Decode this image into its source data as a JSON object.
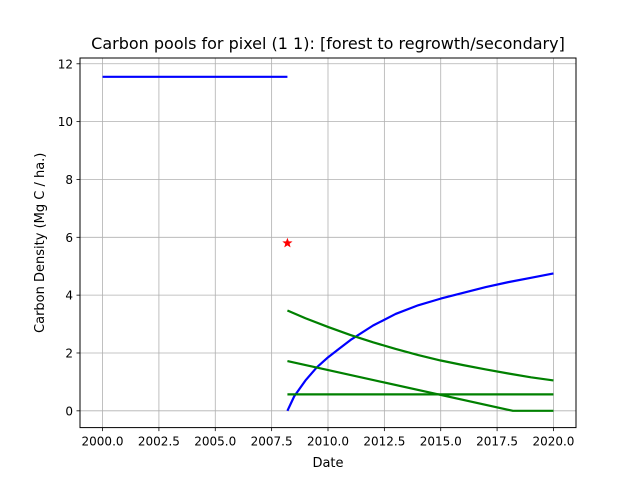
{
  "chart_data": {
    "type": "line",
    "title": "Carbon pools for pixel (1 1): [forest to regrowth/secondary]",
    "xlabel": "Date",
    "ylabel": "Carbon Density (Mg C / ha.)",
    "xlim": [
      1999.0,
      2021.0
    ],
    "ylim": [
      -0.58,
      12.2
    ],
    "grid": true,
    "x_ticks": [
      2000.0,
      2002.5,
      2005.0,
      2007.5,
      2010.0,
      2012.5,
      2015.0,
      2017.5,
      2020.0
    ],
    "x_tick_labels": [
      "2000.0",
      "2002.5",
      "2005.0",
      "2007.5",
      "2010.0",
      "2012.5",
      "2015.0",
      "2017.5",
      "2020.0"
    ],
    "y_ticks": [
      0,
      2,
      4,
      6,
      8,
      10,
      12
    ],
    "y_tick_labels": [
      "0",
      "2",
      "4",
      "6",
      "8",
      "10",
      "12"
    ],
    "series": [
      {
        "color": "#0000ff",
        "x": [
          2000.0,
          2008.2
        ],
        "y": [
          11.55,
          11.55
        ]
      },
      {
        "color": "#0000ff",
        "x": [
          2008.2,
          2008.5,
          2009.0,
          2009.5,
          2010.0,
          2010.5,
          2011.0,
          2012.0,
          2013.0,
          2014.0,
          2015.0,
          2016.0,
          2017.0,
          2018.0,
          2019.0,
          2020.0
        ],
        "y": [
          0.0,
          0.5,
          1.05,
          1.5,
          1.85,
          2.15,
          2.45,
          2.95,
          3.35,
          3.65,
          3.88,
          4.08,
          4.28,
          4.45,
          4.6,
          4.75
        ]
      },
      {
        "color": "#008000",
        "x": [
          2008.2,
          2009.0,
          2010.0,
          2011.0,
          2012.0,
          2013.0,
          2014.0,
          2015.0,
          2016.0,
          2017.0,
          2018.0,
          2019.0,
          2020.0
        ],
        "y": [
          3.47,
          3.2,
          2.9,
          2.62,
          2.37,
          2.14,
          1.93,
          1.74,
          1.58,
          1.43,
          1.29,
          1.16,
          1.05
        ]
      },
      {
        "color": "#008000",
        "x": [
          2008.2,
          2018.2,
          2020.0
        ],
        "y": [
          1.72,
          0.0,
          0.0
        ]
      },
      {
        "color": "#008000",
        "x": [
          2008.2,
          2020.0
        ],
        "y": [
          0.57,
          0.57
        ]
      }
    ],
    "markers": [
      {
        "color": "#ff0000",
        "shape": "star",
        "x": 2008.2,
        "y": 5.8
      }
    ]
  }
}
